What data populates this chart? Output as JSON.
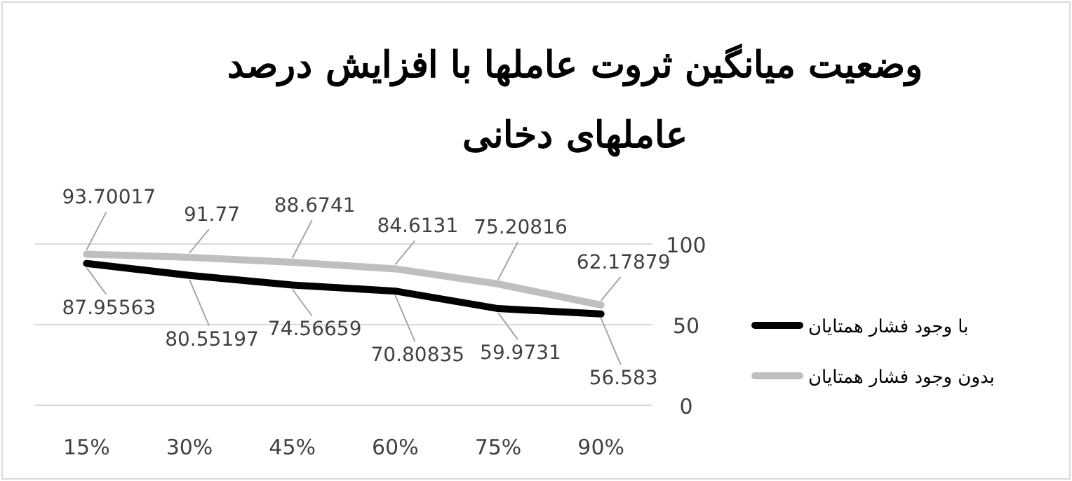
{
  "chart_data": {
    "type": "line",
    "title": "وضعیت میانگین ثروت عاملها با افزایش درصد عاملهای دخانی",
    "categories": [
      "15%",
      "30%",
      "45%",
      "60%",
      "75%",
      "90%"
    ],
    "series": [
      {
        "name": "با وجود فشار همتایان",
        "color": "#000000",
        "values": [
          87.95563,
          80.55197,
          74.56659,
          70.80835,
          59.9731,
          56.583
        ]
      },
      {
        "name": "بدون وجود فشار همتایان",
        "color": "#bfbfbf",
        "values": [
          93.70017,
          91.77,
          88.6741,
          84.6131,
          75.20816,
          62.17879
        ]
      }
    ],
    "ylim": [
      0,
      100
    ],
    "yticks": [
      0,
      50,
      100
    ],
    "grid": "y",
    "legend": "right",
    "data_labels": true
  }
}
